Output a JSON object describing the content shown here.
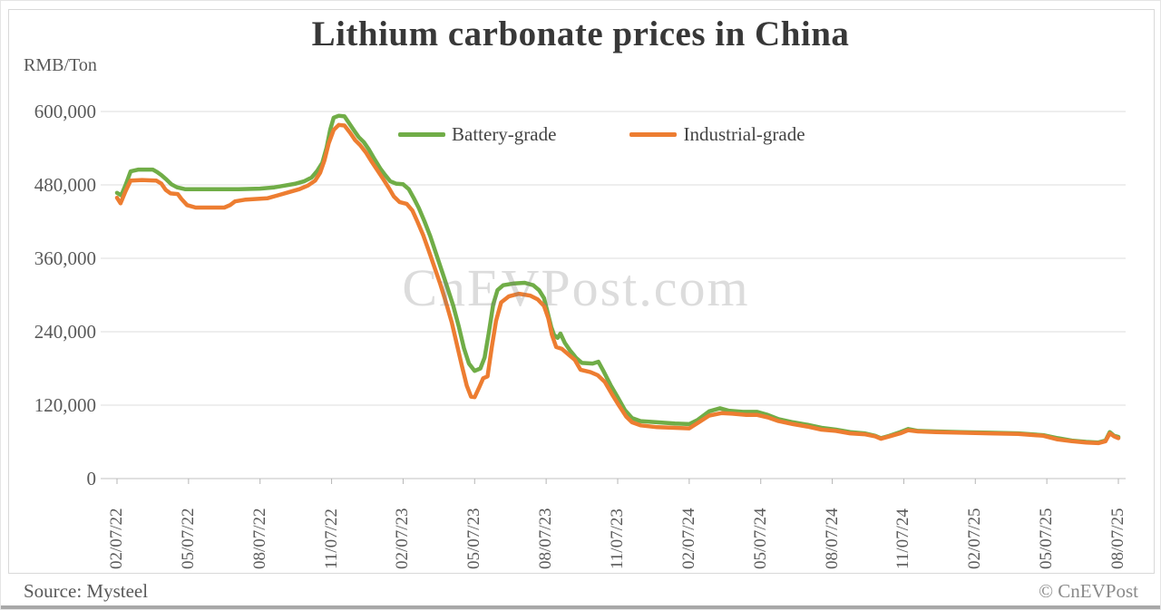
{
  "chart_data": {
    "type": "line",
    "title": "Lithium carbonate prices in China",
    "ylabel": "RMB/Ton",
    "ylim": [
      0,
      600000
    ],
    "grid": true,
    "legend_position": "inside-top-center",
    "x_tick_labels": [
      "02/07/22",
      "05/07/22",
      "08/07/22",
      "11/07/22",
      "02/07/23",
      "05/07/23",
      "08/07/23",
      "11/07/23",
      "02/07/24",
      "05/07/24",
      "08/07/24",
      "11/07/24",
      "02/07/25",
      "05/07/25",
      "08/07/25"
    ],
    "y_ticks": [
      {
        "label": "600,000",
        "value": 600000
      },
      {
        "label": "480,000",
        "value": 480000
      },
      {
        "label": "360,000",
        "value": 360000
      },
      {
        "label": "240,000",
        "value": 240000
      },
      {
        "label": "120,000",
        "value": 120000
      },
      {
        "label": "0",
        "value": 0
      }
    ],
    "x_unit": "tick index (one tick = 3 months)",
    "series": [
      {
        "name": "Battery-grade",
        "color": "#70ad47",
        "points": [
          [
            0,
            467000
          ],
          [
            0.06,
            463000
          ],
          [
            0.12,
            480000
          ],
          [
            0.19,
            502000
          ],
          [
            0.3,
            505000
          ],
          [
            0.5,
            505000
          ],
          [
            0.56,
            501000
          ],
          [
            0.62,
            496000
          ],
          [
            0.68,
            490000
          ],
          [
            0.76,
            481000
          ],
          [
            0.84,
            476000
          ],
          [
            0.95,
            473000
          ],
          [
            1.3,
            473000
          ],
          [
            1.7,
            473000
          ],
          [
            2.0,
            474000
          ],
          [
            2.2,
            476000
          ],
          [
            2.35,
            479000
          ],
          [
            2.5,
            482000
          ],
          [
            2.62,
            486000
          ],
          [
            2.72,
            492000
          ],
          [
            2.8,
            503000
          ],
          [
            2.87,
            516000
          ],
          [
            2.93,
            541000
          ],
          [
            2.98,
            570000
          ],
          [
            3.03,
            590000
          ],
          [
            3.1,
            593000
          ],
          [
            3.18,
            592000
          ],
          [
            3.25,
            580000
          ],
          [
            3.32,
            568000
          ],
          [
            3.38,
            558000
          ],
          [
            3.45,
            550000
          ],
          [
            3.52,
            538000
          ],
          [
            3.6,
            522000
          ],
          [
            3.68,
            507000
          ],
          [
            3.75,
            496000
          ],
          [
            3.82,
            486000
          ],
          [
            3.9,
            482000
          ],
          [
            4.0,
            481000
          ],
          [
            4.08,
            473000
          ],
          [
            4.15,
            458000
          ],
          [
            4.22,
            442000
          ],
          [
            4.3,
            420000
          ],
          [
            4.38,
            396000
          ],
          [
            4.46,
            368000
          ],
          [
            4.54,
            340000
          ],
          [
            4.62,
            312000
          ],
          [
            4.7,
            283000
          ],
          [
            4.78,
            248000
          ],
          [
            4.85,
            213000
          ],
          [
            4.92,
            188000
          ],
          [
            5.0,
            176000
          ],
          [
            5.08,
            180000
          ],
          [
            5.14,
            198000
          ],
          [
            5.2,
            240000
          ],
          [
            5.26,
            285000
          ],
          [
            5.32,
            308000
          ],
          [
            5.4,
            316000
          ],
          [
            5.55,
            319000
          ],
          [
            5.7,
            320000
          ],
          [
            5.82,
            316000
          ],
          [
            5.9,
            308000
          ],
          [
            5.97,
            295000
          ],
          [
            6.02,
            272000
          ],
          [
            6.07,
            248000
          ],
          [
            6.11,
            235000
          ],
          [
            6.16,
            230000
          ],
          [
            6.2,
            237000
          ],
          [
            6.26,
            222000
          ],
          [
            6.33,
            210000
          ],
          [
            6.42,
            197000
          ],
          [
            6.5,
            189000
          ],
          [
            6.65,
            188000
          ],
          [
            6.73,
            191000
          ],
          [
            6.8,
            176000
          ],
          [
            6.9,
            153000
          ],
          [
            7.0,
            133000
          ],
          [
            7.1,
            112000
          ],
          [
            7.2,
            99000
          ],
          [
            7.32,
            94000
          ],
          [
            7.55,
            92000
          ],
          [
            7.8,
            90000
          ],
          [
            8.0,
            89000
          ],
          [
            8.12,
            96000
          ],
          [
            8.28,
            110000
          ],
          [
            8.43,
            115000
          ],
          [
            8.55,
            111000
          ],
          [
            8.75,
            109000
          ],
          [
            8.95,
            109000
          ],
          [
            9.1,
            104000
          ],
          [
            9.25,
            97000
          ],
          [
            9.45,
            92000
          ],
          [
            9.65,
            88000
          ],
          [
            9.85,
            83000
          ],
          [
            10.05,
            80000
          ],
          [
            10.25,
            76000
          ],
          [
            10.45,
            74000
          ],
          [
            10.6,
            70000
          ],
          [
            10.68,
            66000
          ],
          [
            10.8,
            70000
          ],
          [
            10.95,
            76000
          ],
          [
            11.06,
            81000
          ],
          [
            11.2,
            78000
          ],
          [
            11.45,
            77000
          ],
          [
            11.8,
            76000
          ],
          [
            12.2,
            75000
          ],
          [
            12.6,
            74000
          ],
          [
            12.95,
            71000
          ],
          [
            13.15,
            66000
          ],
          [
            13.35,
            62000
          ],
          [
            13.55,
            60000
          ],
          [
            13.72,
            59000
          ],
          [
            13.82,
            62000
          ],
          [
            13.88,
            76000
          ],
          [
            13.94,
            70000
          ],
          [
            14.0,
            68000
          ]
        ]
      },
      {
        "name": "Industrial-grade",
        "color": "#ed7d31",
        "points": [
          [
            0,
            459000
          ],
          [
            0.05,
            450000
          ],
          [
            0.12,
            470000
          ],
          [
            0.19,
            487000
          ],
          [
            0.35,
            488000
          ],
          [
            0.55,
            487000
          ],
          [
            0.62,
            482000
          ],
          [
            0.68,
            472000
          ],
          [
            0.75,
            466000
          ],
          [
            0.85,
            465000
          ],
          [
            0.9,
            457000
          ],
          [
            0.98,
            447000
          ],
          [
            1.1,
            443000
          ],
          [
            1.5,
            443000
          ],
          [
            1.58,
            447000
          ],
          [
            1.65,
            453000
          ],
          [
            1.8,
            456000
          ],
          [
            2.1,
            458000
          ],
          [
            2.25,
            463000
          ],
          [
            2.4,
            468000
          ],
          [
            2.55,
            473000
          ],
          [
            2.67,
            479000
          ],
          [
            2.77,
            487000
          ],
          [
            2.84,
            500000
          ],
          [
            2.9,
            520000
          ],
          [
            2.96,
            548000
          ],
          [
            3.03,
            570000
          ],
          [
            3.1,
            578000
          ],
          [
            3.18,
            577000
          ],
          [
            3.26,
            565000
          ],
          [
            3.33,
            553000
          ],
          [
            3.4,
            545000
          ],
          [
            3.48,
            533000
          ],
          [
            3.56,
            518000
          ],
          [
            3.64,
            504000
          ],
          [
            3.72,
            490000
          ],
          [
            3.8,
            475000
          ],
          [
            3.87,
            461000
          ],
          [
            3.95,
            452000
          ],
          [
            4.05,
            449000
          ],
          [
            4.13,
            438000
          ],
          [
            4.2,
            420000
          ],
          [
            4.28,
            398000
          ],
          [
            4.36,
            372000
          ],
          [
            4.44,
            345000
          ],
          [
            4.52,
            318000
          ],
          [
            4.6,
            288000
          ],
          [
            4.68,
            255000
          ],
          [
            4.75,
            220000
          ],
          [
            4.82,
            185000
          ],
          [
            4.89,
            152000
          ],
          [
            4.95,
            134000
          ],
          [
            5.0,
            133000
          ],
          [
            5.06,
            148000
          ],
          [
            5.12,
            164000
          ],
          [
            5.18,
            167000
          ],
          [
            5.24,
            215000
          ],
          [
            5.3,
            258000
          ],
          [
            5.37,
            288000
          ],
          [
            5.48,
            298000
          ],
          [
            5.62,
            302000
          ],
          [
            5.78,
            299000
          ],
          [
            5.88,
            293000
          ],
          [
            5.97,
            282000
          ],
          [
            6.03,
            262000
          ],
          [
            6.08,
            235000
          ],
          [
            6.14,
            215000
          ],
          [
            6.22,
            212000
          ],
          [
            6.3,
            204000
          ],
          [
            6.4,
            194000
          ],
          [
            6.48,
            178000
          ],
          [
            6.62,
            174000
          ],
          [
            6.72,
            169000
          ],
          [
            6.82,
            158000
          ],
          [
            6.92,
            138000
          ],
          [
            7.02,
            119000
          ],
          [
            7.12,
            101000
          ],
          [
            7.2,
            92000
          ],
          [
            7.32,
            87000
          ],
          [
            7.55,
            84000
          ],
          [
            7.8,
            83000
          ],
          [
            8.0,
            82000
          ],
          [
            8.12,
            91000
          ],
          [
            8.28,
            103000
          ],
          [
            8.45,
            107000
          ],
          [
            8.6,
            106000
          ],
          [
            8.8,
            104000
          ],
          [
            8.95,
            104000
          ],
          [
            9.1,
            100000
          ],
          [
            9.25,
            94000
          ],
          [
            9.45,
            89000
          ],
          [
            9.65,
            85000
          ],
          [
            9.85,
            80000
          ],
          [
            10.05,
            78000
          ],
          [
            10.25,
            74000
          ],
          [
            10.45,
            72500
          ],
          [
            10.6,
            69000
          ],
          [
            10.68,
            65000
          ],
          [
            10.8,
            69000
          ],
          [
            10.95,
            74000
          ],
          [
            11.06,
            79000
          ],
          [
            11.2,
            77000
          ],
          [
            11.45,
            76000
          ],
          [
            11.8,
            75000
          ],
          [
            12.2,
            74000
          ],
          [
            12.6,
            73000
          ],
          [
            12.95,
            70000
          ],
          [
            13.15,
            64000
          ],
          [
            13.35,
            61000
          ],
          [
            13.55,
            59000
          ],
          [
            13.72,
            58000
          ],
          [
            13.82,
            61000
          ],
          [
            13.88,
            74000
          ],
          [
            13.94,
            69000
          ],
          [
            14.0,
            66000
          ]
        ]
      }
    ]
  },
  "watermark": "CnEVPost.com",
  "footer": {
    "source": "Source: Mysteel",
    "copyright": "© CnEVPost"
  }
}
